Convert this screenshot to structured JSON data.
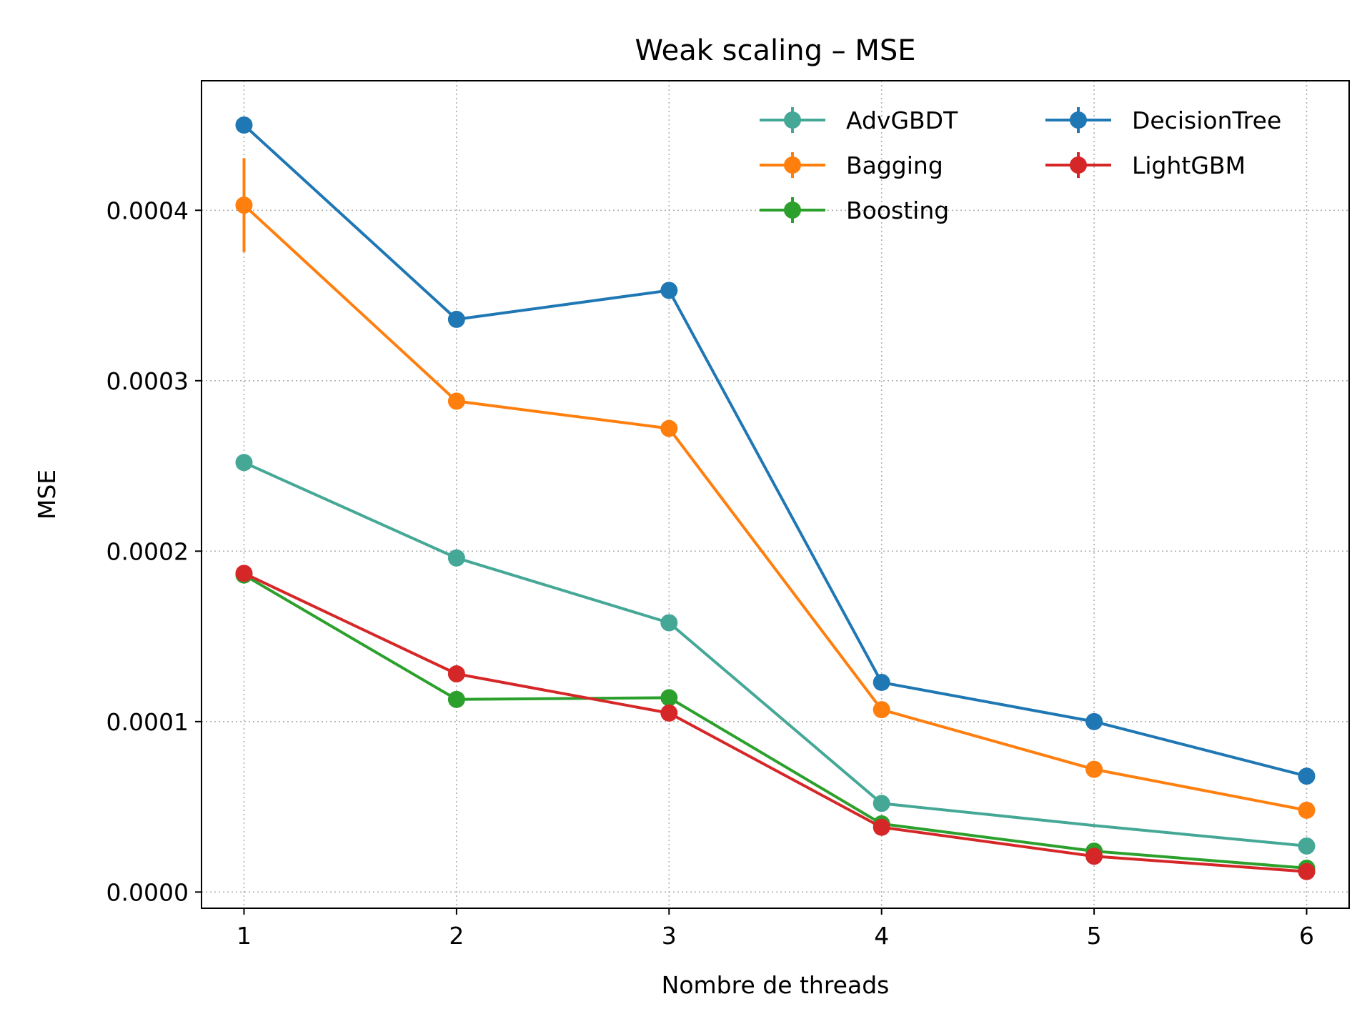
{
  "chart_data": {
    "type": "line",
    "title": "Weak scaling – MSE",
    "xlabel": "Nombre de threads",
    "ylabel": "MSE",
    "x": [
      1,
      2,
      3,
      4,
      5,
      6
    ],
    "xlim": [
      0.8,
      6.2
    ],
    "ylim": [
      -9.5e-06,
      0.000476
    ],
    "yticks": [
      0.0,
      0.0001,
      0.0002,
      0.0003,
      0.0004
    ],
    "ytick_labels": [
      "0.0000",
      "0.0001",
      "0.0002",
      "0.0003",
      "0.0004"
    ],
    "xtick_labels": [
      "1",
      "2",
      "3",
      "4",
      "5",
      "6"
    ],
    "grid": true,
    "legend_position": "upper right",
    "legend_columns": 2,
    "series": [
      {
        "name": "AdvGBDT",
        "color": "#45a897",
        "values": [
          0.000252,
          0.000196,
          0.000158,
          5.2e-05,
          3.9e-05,
          2.7e-05
        ],
        "errors": [
          0,
          0,
          0,
          0,
          0,
          0
        ],
        "markers": [
          true,
          true,
          true,
          true,
          false,
          true
        ]
      },
      {
        "name": "Bagging",
        "color": "#ff7f0e",
        "values": [
          0.000403,
          0.000288,
          0.000272,
          0.000107,
          7.2e-05,
          4.8e-05
        ],
        "errors": [
          2.75e-05,
          0,
          0,
          0,
          0,
          0
        ],
        "markers": [
          true,
          true,
          true,
          true,
          true,
          true
        ]
      },
      {
        "name": "Boosting",
        "color": "#2ca02c",
        "values": [
          0.000186,
          0.000113,
          0.000114,
          4e-05,
          2.4e-05,
          1.4e-05
        ],
        "errors": [
          0,
          0,
          0,
          0,
          0,
          0
        ],
        "markers": [
          true,
          true,
          true,
          true,
          true,
          true
        ]
      },
      {
        "name": "DecisionTree",
        "color": "#1f77b4",
        "values": [
          0.00045,
          0.000336,
          0.000353,
          0.000123,
          0.0001,
          6.8e-05
        ],
        "errors": [
          0,
          0,
          0,
          0,
          0,
          0
        ],
        "markers": [
          true,
          true,
          true,
          true,
          true,
          true
        ]
      },
      {
        "name": "LightGBM",
        "color": "#d62728",
        "values": [
          0.000187,
          0.000128,
          0.000105,
          3.8e-05,
          2.1e-05,
          1.2e-05
        ],
        "errors": [
          0,
          0,
          0,
          0,
          0,
          0
        ],
        "markers": [
          true,
          true,
          true,
          true,
          true,
          true
        ]
      }
    ]
  }
}
